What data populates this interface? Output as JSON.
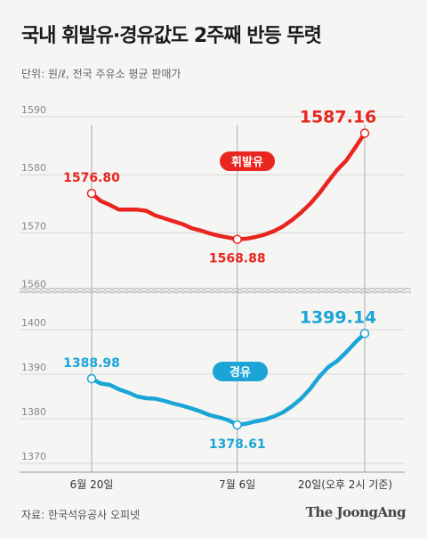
{
  "chart_data": {
    "type": "line",
    "title": "국내 휘발유·경유값도 2주째 반등 뚜렷",
    "unit": "단위: 원/ℓ, 전국 주유소 평균 판매가",
    "source": "자료: 한국석유공사 오피넷",
    "brand": "The JoongAng",
    "broken_y_axis": true,
    "upper_panel": {
      "ylim": [
        1565,
        1592
      ],
      "ticks": [
        "1590",
        "1580",
        "1570",
        "1560"
      ]
    },
    "lower_panel": {
      "ylim": [
        1368,
        1404
      ],
      "ticks": [
        "1400",
        "1390",
        "1380",
        "1370"
      ]
    },
    "x_labels": [
      {
        "index": 0,
        "label": "6월 20일"
      },
      {
        "index": 16,
        "label": "7월 6일"
      },
      {
        "index": 30,
        "label": "20일(오후 2시 기준)"
      }
    ],
    "x_count": 31,
    "colors": {
      "gasoline": "#e8251f",
      "diesel": "#1aa5d6",
      "grid": "#d6d6d6",
      "axis": "#999999"
    },
    "series": [
      {
        "name": "휘발유",
        "color": "#e8251f",
        "panel": "upper",
        "values": [
          1576.8,
          1575.5,
          1574.8,
          1574.0,
          1574.0,
          1574.0,
          1573.8,
          1573.0,
          1572.5,
          1572.0,
          1571.5,
          1570.8,
          1570.4,
          1569.9,
          1569.5,
          1569.2,
          1568.88,
          1569.0,
          1569.3,
          1569.7,
          1570.3,
          1571.1,
          1572.2,
          1573.5,
          1575.0,
          1576.8,
          1578.9,
          1580.9,
          1582.5,
          1584.8,
          1587.16
        ],
        "labels": [
          {
            "index": 0,
            "text": "1576.80"
          },
          {
            "index": 16,
            "text": "1568.88"
          },
          {
            "index": 30,
            "text": "1587.16"
          }
        ]
      },
      {
        "name": "경유",
        "color": "#1aa5d6",
        "panel": "lower",
        "values": [
          1388.98,
          1387.9,
          1387.6,
          1386.6,
          1385.9,
          1385.0,
          1384.6,
          1384.5,
          1384.0,
          1383.4,
          1382.9,
          1382.3,
          1381.6,
          1380.8,
          1380.3,
          1379.7,
          1378.61,
          1378.9,
          1379.4,
          1379.8,
          1380.5,
          1381.4,
          1382.8,
          1384.5,
          1386.7,
          1389.4,
          1391.6,
          1393.0,
          1395.0,
          1397.2,
          1399.14
        ],
        "labels": [
          {
            "index": 0,
            "text": "1388.98"
          },
          {
            "index": 16,
            "text": "1378.61"
          },
          {
            "index": 30,
            "text": "1399.14"
          }
        ]
      }
    ]
  }
}
